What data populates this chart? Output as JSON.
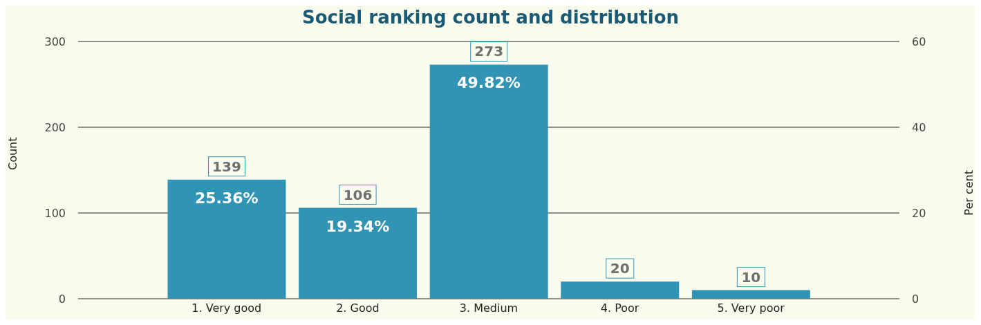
{
  "chart_data": {
    "type": "bar",
    "title": "Social ranking count and distribution",
    "ylabel": "Count",
    "y2label": "Per cent",
    "categories": [
      "1. Very good",
      "2. Good",
      "3. Medium",
      "4. Poor",
      "5. Very poor"
    ],
    "values": [
      139,
      106,
      273,
      20,
      10
    ],
    "color": "#3194b5",
    "data_labels": true,
    "ylim": [
      0,
      300
    ],
    "yticks": [
      0,
      100,
      200,
      300
    ],
    "y2lim": [
      0,
      60
    ],
    "y2ticks": [
      0,
      20,
      40,
      60
    ],
    "grid": "y",
    "legend": false,
    "annotations": [
      {
        "text": "25.36%",
        "x": "1. Very good",
        "y": 139
      },
      {
        "text": "19.34%",
        "x": "2. Good",
        "y": 106
      },
      {
        "text": "49.82%",
        "x": "3. Medium",
        "y": 273
      }
    ]
  }
}
